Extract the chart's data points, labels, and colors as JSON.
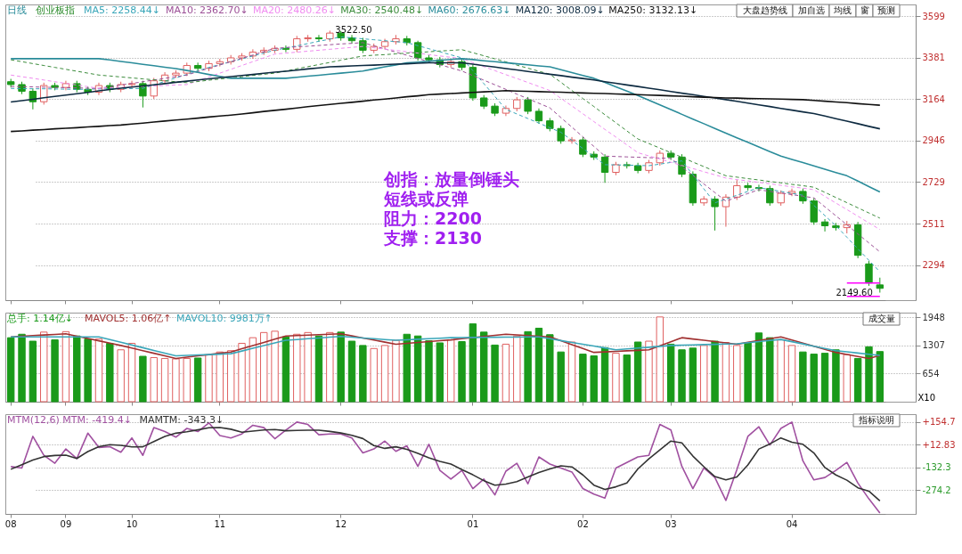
{
  "chart_data": [
    {
      "type": "candlestick",
      "title": "日线",
      "subtitle": "创业板指",
      "categories": [
        "08",
        null,
        null,
        null,
        null,
        "09",
        null,
        null,
        null,
        null,
        null,
        "10",
        null,
        null,
        null,
        null,
        null,
        null,
        null,
        "11",
        null,
        null,
        null,
        null,
        null,
        null,
        null,
        null,
        null,
        null,
        "12",
        null,
        null,
        null,
        null,
        null,
        null,
        null,
        null,
        null,
        null,
        null,
        "01",
        null,
        null,
        null,
        null,
        null,
        null,
        null,
        null,
        null,
        "02",
        null,
        null,
        null,
        null,
        null,
        null,
        null,
        "03",
        null,
        null,
        null,
        null,
        null,
        null,
        null,
        null,
        null,
        null,
        "04",
        null,
        null,
        null,
        null,
        null,
        null,
        null,
        null
      ],
      "ohlc": [
        [
          3255,
          3270,
          3225,
          3240
        ],
        [
          3240,
          3255,
          3190,
          3205
        ],
        [
          3205,
          3220,
          3110,
          3150
        ],
        [
          3150,
          3250,
          3135,
          3235
        ],
        [
          3235,
          3250,
          3210,
          3225
        ],
        [
          3225,
          3260,
          3210,
          3245
        ],
        [
          3245,
          3260,
          3200,
          3215
        ],
        [
          3215,
          3230,
          3185,
          3200
        ],
        [
          3200,
          3250,
          3185,
          3235
        ],
        [
          3235,
          3250,
          3200,
          3215
        ],
        [
          3215,
          3255,
          3200,
          3240
        ],
        [
          3240,
          3260,
          3225,
          3245
        ],
        [
          3245,
          3260,
          3120,
          3180
        ],
        [
          3180,
          3275,
          3165,
          3260
        ],
        [
          3260,
          3305,
          3245,
          3290
        ],
        [
          3290,
          3315,
          3275,
          3300
        ],
        [
          3300,
          3355,
          3285,
          3340
        ],
        [
          3340,
          3355,
          3310,
          3325
        ],
        [
          3325,
          3365,
          3310,
          3350
        ],
        [
          3350,
          3375,
          3335,
          3360
        ],
        [
          3360,
          3395,
          3345,
          3380
        ],
        [
          3380,
          3405,
          3365,
          3390
        ],
        [
          3390,
          3425,
          3375,
          3410
        ],
        [
          3410,
          3435,
          3395,
          3420
        ],
        [
          3420,
          3445,
          3405,
          3430
        ],
        [
          3430,
          3445,
          3410,
          3425
        ],
        [
          3425,
          3495,
          3410,
          3480
        ],
        [
          3480,
          3500,
          3465,
          3485
        ],
        [
          3485,
          3500,
          3465,
          3480
        ],
        [
          3480,
          3522.5,
          3465,
          3510
        ],
        [
          3510,
          3520,
          3470,
          3485
        ],
        [
          3485,
          3500,
          3455,
          3470
        ],
        [
          3470,
          3485,
          3405,
          3420
        ],
        [
          3420,
          3455,
          3405,
          3440
        ],
        [
          3440,
          3480,
          3425,
          3465
        ],
        [
          3465,
          3500,
          3450,
          3480
        ],
        [
          3480,
          3495,
          3445,
          3460
        ],
        [
          3460,
          3470,
          3365,
          3380
        ],
        [
          3380,
          3395,
          3355,
          3370
        ],
        [
          3370,
          3385,
          3330,
          3345
        ],
        [
          3345,
          3375,
          3330,
          3360
        ],
        [
          3360,
          3375,
          3315,
          3330
        ],
        [
          3330,
          3345,
          3155,
          3170
        ],
        [
          3170,
          3185,
          3112,
          3127
        ],
        [
          3127,
          3142,
          3075,
          3090
        ],
        [
          3090,
          3130,
          3075,
          3115
        ],
        [
          3115,
          3175,
          3100,
          3160
        ],
        [
          3160,
          3175,
          3085,
          3100
        ],
        [
          3100,
          3115,
          3035,
          3050
        ],
        [
          3050,
          3065,
          2995,
          3010
        ],
        [
          3010,
          3025,
          2930,
          2945
        ],
        [
          2945,
          2965,
          2930,
          2950
        ],
        [
          2950,
          2965,
          2860,
          2875
        ],
        [
          2875,
          2890,
          2845,
          2860
        ],
        [
          2860,
          2875,
          2725,
          2780
        ],
        [
          2780,
          2835,
          2765,
          2820
        ],
        [
          2820,
          2835,
          2800,
          2815
        ],
        [
          2815,
          2830,
          2775,
          2790
        ],
        [
          2790,
          2845,
          2775,
          2830
        ],
        [
          2830,
          2895,
          2815,
          2880
        ],
        [
          2880,
          2895,
          2845,
          2860
        ],
        [
          2860,
          2875,
          2755,
          2770
        ],
        [
          2770,
          2785,
          2605,
          2620
        ],
        [
          2620,
          2655,
          2605,
          2640
        ],
        [
          2640,
          2655,
          2475,
          2600
        ],
        [
          2600,
          2665,
          2495,
          2650
        ],
        [
          2650,
          2740,
          2635,
          2710
        ],
        [
          2710,
          2725,
          2685,
          2700
        ],
        [
          2700,
          2715,
          2680,
          2695
        ],
        [
          2695,
          2710,
          2605,
          2620
        ],
        [
          2620,
          2685,
          2605,
          2670
        ],
        [
          2670,
          2695,
          2655,
          2680
        ],
        [
          2680,
          2695,
          2615,
          2630
        ],
        [
          2630,
          2645,
          2505,
          2520
        ],
        [
          2520,
          2535,
          2470,
          2500
        ],
        [
          2500,
          2515,
          2475,
          2490
        ],
        [
          2490,
          2525,
          2460,
          2505
        ],
        [
          2505,
          2520,
          2330,
          2345
        ],
        [
          2300,
          2315,
          2185,
          2200
        ],
        [
          2190,
          2228,
          2149.6,
          2172
        ]
      ],
      "colors": [
        "#1a9a1a",
        "#1a9a1a",
        "#1a9a1a",
        "#e06060",
        "#1a9a1a",
        "#e06060",
        "#1a9a1a",
        "#1a9a1a",
        "#e06060",
        "#1a9a1a",
        "#e06060",
        "#e06060",
        "#1a9a1a",
        "#e06060",
        "#e06060",
        "#e06060",
        "#e06060",
        "#1a9a1a",
        "#e06060",
        "#e06060",
        "#e06060",
        "#e06060",
        "#e06060",
        "#e06060",
        "#e06060",
        "#1a9a1a",
        "#e06060",
        "#e06060",
        "#1a9a1a",
        "#e06060",
        "#1a9a1a",
        "#1a9a1a",
        "#1a9a1a",
        "#e06060",
        "#e06060",
        "#e06060",
        "#1a9a1a",
        "#1a9a1a",
        "#1a9a1a",
        "#1a9a1a",
        "#e06060",
        "#1a9a1a",
        "#1a9a1a",
        "#1a9a1a",
        "#1a9a1a",
        "#e06060",
        "#e06060",
        "#1a9a1a",
        "#1a9a1a",
        "#1a9a1a",
        "#1a9a1a",
        "#e06060",
        "#1a9a1a",
        "#1a9a1a",
        "#1a9a1a",
        "#e06060",
        "#1a9a1a",
        "#1a9a1a",
        "#e06060",
        "#e06060",
        "#1a9a1a",
        "#1a9a1a",
        "#1a9a1a",
        "#e06060",
        "#1a9a1a",
        "#e06060",
        "#e06060",
        "#1a9a1a",
        "#1a9a1a",
        "#1a9a1a",
        "#e06060",
        "#e06060",
        "#1a9a1a",
        "#1a9a1a",
        "#1a9a1a",
        "#1a9a1a",
        "#e06060",
        "#1a9a1a",
        "#1a9a1a",
        "#1a9a1a"
      ],
      "series": [
        {
          "name": "MA5: 2258.44↓",
          "type": "line",
          "line_style": "dashed",
          "color": "#3aa6b9",
          "values": [
            3220,
            3219,
            3218,
            3218,
            3217,
            3216,
            3215,
            3216,
            3217,
            3218,
            3218,
            3219,
            3220,
            3238,
            3257,
            3275,
            3293,
            3312,
            3330,
            3345,
            3360,
            3375,
            3390,
            3405,
            3420,
            3432,
            3443,
            3455,
            3467,
            3478,
            3490,
            3485,
            3480,
            3475,
            3470,
            3465,
            3460,
            3444,
            3428,
            3412,
            3396,
            3380,
            3313,
            3245,
            3178,
            3110,
            3086,
            3062,
            3038,
            3014,
            2990,
            2948,
            2905,
            2863,
            2820,
            2819,
            2818,
            2816,
            2815,
            2823,
            2832,
            2840,
            2767,
            2693,
            2620,
            2640,
            2660,
            2680,
            2700,
            2690,
            2680,
            2670,
            2660,
            2607,
            2553,
            2500,
            2440,
            2379,
            2319,
            2258
          ]
        },
        {
          "name": "MA10: 2362.70↓",
          "type": "line",
          "line_style": "dashed",
          "color": "#9b4f96",
          "values": [
            3230,
            3229,
            3228,
            3226,
            3225,
            3224,
            3223,
            3221,
            3220,
            3229,
            3238,
            3246,
            3255,
            3264,
            3273,
            3281,
            3290,
            3308,
            3325,
            3343,
            3360,
            3378,
            3395,
            3413,
            3430,
            3434,
            3438,
            3441,
            3445,
            3449,
            3453,
            3456,
            3460,
            3443,
            3427,
            3410,
            3394,
            3377,
            3361,
            3344,
            3328,
            3311,
            3287,
            3263,
            3239,
            3215,
            3190,
            3166,
            3142,
            3118,
            3067,
            3017,
            2966,
            2916,
            2865,
            2863,
            2861,
            2859,
            2857,
            2855,
            2853,
            2808,
            2764,
            2719,
            2674,
            2629,
            2649,
            2669,
            2689,
            2680,
            2672,
            2663,
            2655,
            2646,
            2599,
            2552,
            2505,
            2457,
            2410,
            2363
          ]
        },
        {
          "name": "MA20: 2480.26↓",
          "type": "line",
          "line_style": "dashed",
          "color": "#f08cf0",
          "values": [
            3290,
            3281,
            3273,
            3264,
            3255,
            3246,
            3238,
            3229,
            3220,
            3223,
            3225,
            3228,
            3230,
            3233,
            3235,
            3238,
            3240,
            3260,
            3280,
            3300,
            3320,
            3340,
            3360,
            3380,
            3400,
            3405,
            3410,
            3415,
            3420,
            3425,
            3430,
            3435,
            3440,
            3433,
            3426,
            3419,
            3412,
            3405,
            3397,
            3390,
            3383,
            3376,
            3355,
            3334,
            3313,
            3292,
            3272,
            3251,
            3230,
            3209,
            3168,
            3128,
            3087,
            3046,
            3005,
            2965,
            2924,
            2883,
            2866,
            2850,
            2833,
            2816,
            2800,
            2783,
            2767,
            2750,
            2742,
            2735,
            2727,
            2720,
            2712,
            2704,
            2697,
            2689,
            2654,
            2619,
            2585,
            2550,
            2515,
            2480
          ]
        },
        {
          "name": "MA30: 2540.48↓",
          "type": "line",
          "line_style": "dashed",
          "color": "#3c8c3c",
          "values": [
            3370,
            3360,
            3350,
            3340,
            3330,
            3320,
            3310,
            3300,
            3290,
            3285,
            3280,
            3275,
            3270,
            3265,
            3260,
            3255,
            3250,
            3256,
            3263,
            3269,
            3275,
            3281,
            3288,
            3294,
            3300,
            3311,
            3323,
            3334,
            3345,
            3356,
            3368,
            3379,
            3390,
            3394,
            3397,
            3401,
            3405,
            3408,
            3412,
            3416,
            3419,
            3423,
            3407,
            3391,
            3375,
            3359,
            3342,
            3326,
            3310,
            3294,
            3252,
            3209,
            3167,
            3125,
            3082,
            3040,
            2997,
            2955,
            2931,
            2907,
            2883,
            2859,
            2834,
            2810,
            2786,
            2762,
            2755,
            2747,
            2740,
            2732,
            2725,
            2717,
            2710,
            2702,
            2675,
            2648,
            2621,
            2594,
            2567,
            2540
          ]
        },
        {
          "name": "MA60: 2676.63↓",
          "type": "line",
          "line_style": "solid",
          "color": "#2a8c9a",
          "values": [
            3376,
            3376,
            3376,
            3376,
            3376,
            3376,
            3376,
            3376,
            3376,
            3369,
            3361,
            3354,
            3346,
            3339,
            3331,
            3324,
            3314,
            3304,
            3293,
            3283,
            3273,
            3273,
            3273,
            3273,
            3273,
            3273,
            3278,
            3284,
            3289,
            3295,
            3300,
            3305,
            3311,
            3322,
            3333,
            3343,
            3354,
            3358,
            3363,
            3367,
            3372,
            3376,
            3371,
            3365,
            3360,
            3355,
            3349,
            3344,
            3338,
            3333,
            3318,
            3303,
            3288,
            3273,
            3251,
            3228,
            3206,
            3183,
            3158,
            3134,
            3109,
            3084,
            3059,
            3035,
            3010,
            2985,
            2961,
            2937,
            2913,
            2889,
            2865,
            2848,
            2831,
            2814,
            2796,
            2779,
            2762,
            2734,
            2705,
            2677
          ]
        },
        {
          "name": "MA120: 3008.09↓",
          "type": "line",
          "line_style": "solid",
          "color": "#0d2a40",
          "values": [
            3149,
            3156,
            3163,
            3171,
            3178,
            3185,
            3192,
            3199,
            3207,
            3214,
            3221,
            3227,
            3233,
            3239,
            3245,
            3252,
            3258,
            3264,
            3270,
            3276,
            3282,
            3288,
            3293,
            3299,
            3305,
            3310,
            3316,
            3322,
            3327,
            3333,
            3335,
            3338,
            3340,
            3342,
            3345,
            3347,
            3349,
            3352,
            3354,
            3354,
            3354,
            3354,
            3347,
            3339,
            3332,
            3324,
            3317,
            3309,
            3302,
            3294,
            3287,
            3279,
            3272,
            3264,
            3255,
            3247,
            3238,
            3230,
            3221,
            3213,
            3204,
            3195,
            3187,
            3178,
            3170,
            3161,
            3152,
            3143,
            3134,
            3125,
            3115,
            3106,
            3097,
            3088,
            3075,
            3061,
            3048,
            3035,
            3021,
            3008
          ]
        },
        {
          "name": "MA250: 3132.13↓",
          "type": "line",
          "line_style": "solid",
          "color": "#111111",
          "values": [
            2994,
            2997,
            3001,
            3004,
            3008,
            3011,
            3014,
            3018,
            3021,
            3025,
            3028,
            3033,
            3038,
            3044,
            3049,
            3054,
            3059,
            3064,
            3070,
            3075,
            3080,
            3086,
            3092,
            3099,
            3105,
            3111,
            3117,
            3124,
            3130,
            3136,
            3142,
            3147,
            3153,
            3159,
            3164,
            3170,
            3176,
            3181,
            3187,
            3190,
            3193,
            3196,
            3199,
            3202,
            3205,
            3208,
            3206,
            3205,
            3203,
            3201,
            3200,
            3198,
            3196,
            3194,
            3193,
            3191,
            3189,
            3187,
            3185,
            3183,
            3181,
            3179,
            3176,
            3174,
            3172,
            3170,
            3169,
            3167,
            3166,
            3165,
            3164,
            3162,
            3161,
            3157,
            3153,
            3149,
            3145,
            3140,
            3136,
            3132
          ]
        },
        {
          "type": "line",
          "line_style": "solid",
          "color": "#ff00ff",
          "values": [
            null,
            null,
            null,
            null,
            null,
            null,
            null,
            null,
            null,
            null,
            null,
            null,
            null,
            null,
            null,
            null,
            null,
            null,
            null,
            null,
            null,
            null,
            null,
            null,
            null,
            null,
            null,
            null,
            null,
            null,
            null,
            null,
            null,
            null,
            null,
            null,
            null,
            null,
            null,
            null,
            null,
            null,
            null,
            null,
            null,
            null,
            null,
            null,
            null,
            null,
            null,
            null,
            null,
            null,
            null,
            null,
            null,
            null,
            null,
            null,
            null,
            null,
            null,
            null,
            null,
            null,
            null,
            null,
            null,
            null,
            null,
            null,
            null,
            null,
            null,
            null,
            2200,
            2200,
            2200,
            2200
          ]
        },
        {
          "type": "line",
          "line_style": "solid",
          "color": "#ff00ff",
          "values": [
            null,
            null,
            null,
            null,
            null,
            null,
            null,
            null,
            null,
            null,
            null,
            null,
            null,
            null,
            null,
            null,
            null,
            null,
            null,
            null,
            null,
            null,
            null,
            null,
            null,
            null,
            null,
            null,
            null,
            null,
            null,
            null,
            null,
            null,
            null,
            null,
            null,
            null,
            null,
            null,
            null,
            null,
            null,
            null,
            null,
            null,
            null,
            null,
            null,
            null,
            null,
            null,
            null,
            null,
            null,
            null,
            null,
            null,
            null,
            null,
            null,
            null,
            null,
            null,
            null,
            null,
            null,
            null,
            null,
            null,
            null,
            null,
            null,
            null,
            null,
            null,
            2130,
            2130,
            2130,
            2130
          ]
        }
      ],
      "annotations": [
        "3522.50",
        "2149.60",
        "创指：放量倒锤头短线或反弹",
        "阻力：2200",
        "支撑：2130",
        "大盘趋势线",
        "加自选",
        "均线",
        "窗",
        "预测"
      ],
      "ylim": [
        2110,
        3660
      ],
      "yticks": [
        2294,
        2511,
        2729,
        2946,
        3164,
        3381,
        3599
      ],
      "grid": "y",
      "tick_labels": "y"
    },
    {
      "type": "bar",
      "ylabel": "X10",
      "categories": [
        "08",
        null,
        null,
        null,
        null,
        "09",
        null,
        null,
        null,
        null,
        null,
        "10",
        null,
        null,
        null,
        null,
        null,
        null,
        null,
        "11",
        null,
        null,
        null,
        null,
        null,
        null,
        null,
        null,
        null,
        null,
        "12",
        null,
        null,
        null,
        null,
        null,
        null,
        null,
        null,
        null,
        null,
        null,
        "01",
        null,
        null,
        null,
        null,
        null,
        null,
        null,
        null,
        null,
        "02",
        null,
        null,
        null,
        null,
        null,
        null,
        null,
        "03",
        null,
        null,
        null,
        null,
        null,
        null,
        null,
        null,
        null,
        null,
        "04",
        null,
        null,
        null,
        null,
        null,
        null,
        null,
        null
      ],
      "series": [
        {
          "name": "总手: 1.14亿↓",
          "type": "bar",
          "colors": [
            "#1a9a1a",
            "#1a9a1a",
            "#1a9a1a",
            "#e06060",
            "#1a9a1a",
            "#e06060",
            "#1a9a1a",
            "#1a9a1a",
            "#e06060",
            "#1a9a1a",
            "#e06060",
            "#e06060",
            "#1a9a1a",
            "#e06060",
            "#e06060",
            "#e06060",
            "#e06060",
            "#1a9a1a",
            "#e06060",
            "#e06060",
            "#e06060",
            "#e06060",
            "#e06060",
            "#e06060",
            "#e06060",
            "#1a9a1a",
            "#e06060",
            "#e06060",
            "#1a9a1a",
            "#e06060",
            "#1a9a1a",
            "#1a9a1a",
            "#1a9a1a",
            "#e06060",
            "#e06060",
            "#e06060",
            "#1a9a1a",
            "#1a9a1a",
            "#1a9a1a",
            "#1a9a1a",
            "#e06060",
            "#1a9a1a",
            "#1a9a1a",
            "#1a9a1a",
            "#1a9a1a",
            "#e06060",
            "#e06060",
            "#1a9a1a",
            "#1a9a1a",
            "#1a9a1a",
            "#1a9a1a",
            "#e06060",
            "#1a9a1a",
            "#1a9a1a",
            "#1a9a1a",
            "#e06060",
            "#1a9a1a",
            "#1a9a1a",
            "#e06060",
            "#e06060",
            "#1a9a1a",
            "#1a9a1a",
            "#1a9a1a",
            "#e06060",
            "#1a9a1a",
            "#e06060",
            "#e06060",
            "#1a9a1a",
            "#1a9a1a",
            "#1a9a1a",
            "#e06060",
            "#e06060",
            "#1a9a1a",
            "#1a9a1a",
            "#1a9a1a",
            "#1a9a1a",
            "#e06060",
            "#1a9a1a",
            "#1a9a1a",
            "#1a9a1a"
          ],
          "values": [
            1480,
            1560,
            1400,
            1610,
            1430,
            1620,
            1520,
            1450,
            1450,
            1350,
            1200,
            1350,
            1050,
            1020,
            1000,
            990,
            1000,
            1010,
            1080,
            1150,
            1180,
            1350,
            1480,
            1600,
            1630,
            1500,
            1560,
            1600,
            1520,
            1600,
            1610,
            1400,
            1300,
            1230,
            1300,
            1420,
            1560,
            1520,
            1410,
            1360,
            1430,
            1390,
            1800,
            1610,
            1310,
            1330,
            1520,
            1620,
            1700,
            1550,
            1150,
            1380,
            1100,
            1060,
            1250,
            1120,
            1080,
            1380,
            1400,
            1960,
            1330,
            1200,
            1240,
            1300,
            1400,
            1370,
            1300,
            1370,
            1590,
            1480,
            1430,
            1300,
            1150,
            1100,
            1120,
            1200,
            1090,
            1000,
            1270,
            1160
          ]
        },
        {
          "name": "MAVOL5: 1.06亿↑",
          "type": "line",
          "color": "#a03030",
          "values": [
            1500,
            1514,
            1528,
            1542,
            1556,
            1570,
            1516,
            1462,
            1408,
            1354,
            1300,
            1240,
            1180,
            1120,
            1060,
            1000,
            1030,
            1060,
            1090,
            1120,
            1150,
            1224,
            1298,
            1372,
            1446,
            1520,
            1530,
            1540,
            1550,
            1560,
            1570,
            1522,
            1474,
            1426,
            1378,
            1330,
            1350,
            1370,
            1390,
            1410,
            1430,
            1456,
            1482,
            1508,
            1534,
            1560,
            1545,
            1530,
            1515,
            1500,
            1410,
            1320,
            1230,
            1140,
            1152,
            1164,
            1176,
            1188,
            1200,
            1293,
            1387,
            1480,
            1450,
            1420,
            1390,
            1360,
            1330,
            1373,
            1415,
            1458,
            1500,
            1428,
            1356,
            1284,
            1212,
            1140,
            1093,
            1047,
            1000,
            1070
          ]
        },
        {
          "name": "MAVOL10: 9981万↑",
          "type": "line",
          "color": "#3aa6b9",
          "values": [
            1500,
            1500,
            1500,
            1500,
            1500,
            1500,
            1500,
            1500,
            1500,
            1437,
            1374,
            1311,
            1249,
            1186,
            1123,
            1060,
            1070,
            1080,
            1090,
            1100,
            1110,
            1172,
            1234,
            1296,
            1358,
            1420,
            1438,
            1456,
            1474,
            1492,
            1510,
            1492,
            1474,
            1456,
            1438,
            1420,
            1432,
            1444,
            1456,
            1468,
            1480,
            1483,
            1485,
            1488,
            1490,
            1493,
            1495,
            1498,
            1500,
            1457,
            1414,
            1371,
            1329,
            1286,
            1243,
            1200,
            1220,
            1240,
            1260,
            1280,
            1300,
            1307,
            1313,
            1320,
            1327,
            1333,
            1340,
            1365,
            1390,
            1415,
            1440,
            1388,
            1336,
            1284,
            1232,
            1180,
            1153,
            1125,
            1098,
            1070
          ]
        }
      ],
      "annotations": [
        "成交量"
      ],
      "ylim": [
        0,
        2060
      ],
      "yticks": [
        654,
        1307,
        1948
      ],
      "grid": "y",
      "tick_labels": "y"
    },
    {
      "type": "line",
      "categories": [
        "08",
        null,
        null,
        null,
        null,
        "09",
        null,
        null,
        null,
        null,
        null,
        "10",
        null,
        null,
        null,
        null,
        null,
        null,
        null,
        "11",
        null,
        null,
        null,
        null,
        null,
        null,
        null,
        null,
        null,
        null,
        "12",
        null,
        null,
        null,
        null,
        null,
        null,
        null,
        null,
        null,
        null,
        null,
        "01",
        null,
        null,
        null,
        null,
        null,
        null,
        null,
        null,
        null,
        "02",
        null,
        null,
        null,
        null,
        null,
        null,
        null,
        "03",
        null,
        null,
        null,
        null,
        null,
        null,
        null,
        null,
        null,
        null,
        "04",
        null,
        null,
        null,
        null,
        null,
        null,
        null,
        null
      ],
      "series": [
        {
          "name": "MTM(12,6) MTM: -419.4↓",
          "color": "#a050a0",
          "values": [
            -126,
            -135,
            65,
            -55,
            -105,
            -15,
            -75,
            85,
            -5,
            0,
            -35,
            55,
            -55,
            120,
            95,
            60,
            115,
            95,
            150,
            70,
            55,
            80,
            135,
            120,
            50,
            105,
            155,
            140,
            75,
            80,
            80,
            55,
            -40,
            -15,
            35,
            -30,
            5,
            -125,
            15,
            -150,
            -205,
            -150,
            -265,
            -205,
            -305,
            -155,
            -105,
            -235,
            -65,
            -110,
            -135,
            -160,
            -265,
            -300,
            -325,
            -135,
            -100,
            -65,
            -55,
            140,
            105,
            -125,
            -265,
            -135,
            -195,
            -340,
            -145,
            65,
            125,
            10,
            115,
            155,
            -90,
            -210,
            -195,
            -150,
            -100,
            -230,
            -330,
            -419
          ]
        },
        {
          "name": "MAMTM: -343.3↓",
          "color": "#333333",
          "values": [
            -143,
            -114,
            -85,
            -63,
            -56,
            -54,
            -75,
            -31,
            0,
            12,
            8,
            -2,
            -1,
            32,
            64,
            85,
            94,
            106,
            119,
            121,
            110,
            91,
            98,
            105,
            108,
            100,
            102,
            104,
            104,
            96,
            86,
            71,
            51,
            7,
            -11,
            -1,
            -17,
            -43,
            -71,
            -93,
            -110,
            -145,
            -178,
            -215,
            -244,
            -237,
            -221,
            -192,
            -163,
            -141,
            -121,
            -128,
            -179,
            -243,
            -270,
            -254,
            -230,
            -141,
            -77,
            -21,
            35,
            24,
            -60,
            -127,
            -189,
            -210,
            -192,
            -116,
            -15,
            17,
            55,
            28,
            15,
            -40,
            -132,
            -179,
            -212,
            -260,
            -281,
            -343
          ]
        }
      ],
      "annotations": [
        "指标说明"
      ],
      "ylim": [
        -425,
        205
      ],
      "yticks": [
        {
          "value": 154.7,
          "label": "+154.7"
        },
        {
          "value": 12.83,
          "label": "+12.83"
        },
        -132.3,
        -274.2
      ],
      "grid": "y"
    }
  ]
}
